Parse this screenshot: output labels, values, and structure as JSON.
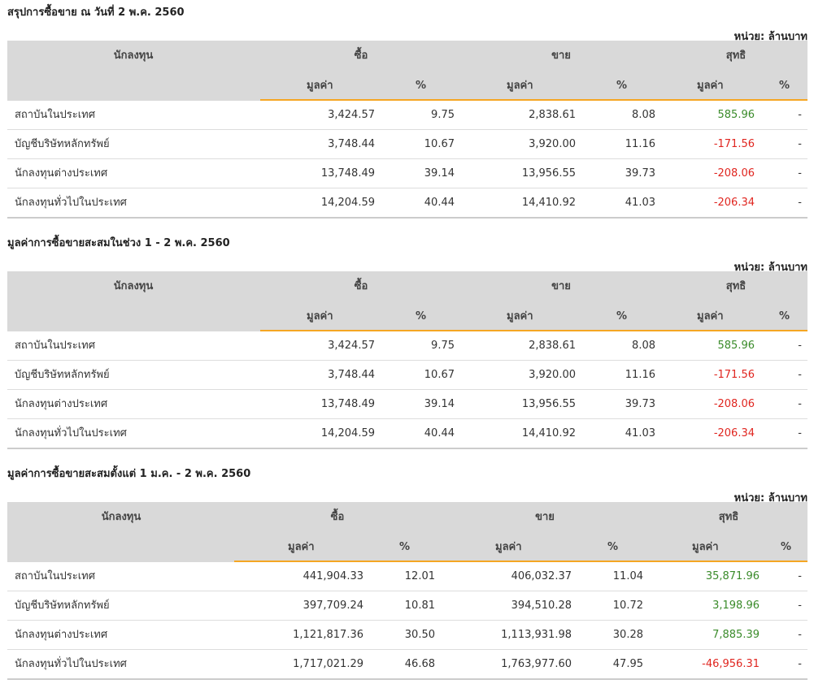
{
  "unit_label": "หน่วย: ล้านบาท",
  "headers": {
    "investor": "นักลงทุน",
    "buy": "ซื้อ",
    "sell": "ขาย",
    "net": "สุทธิ",
    "value": "มูลค่า",
    "pct": "%"
  },
  "colors": {
    "accent": "#f5a623",
    "positive": "#3a8b2a",
    "negative": "#e0251f",
    "header_bg": "#d9d9d9"
  },
  "sections": [
    {
      "title": "สรุปการซื้อขาย ณ วันที่ 2 พ.ค. 2560",
      "rows": [
        {
          "name": "สถาบันในประเทศ",
          "buy_value": "3,424.57",
          "buy_pct": "9.75",
          "sell_value": "2,838.61",
          "sell_pct": "8.08",
          "net_value": "585.96",
          "net_pct": "-",
          "sign": "pos"
        },
        {
          "name": "บัญชีบริษัทหลักทรัพย์",
          "buy_value": "3,748.44",
          "buy_pct": "10.67",
          "sell_value": "3,920.00",
          "sell_pct": "11.16",
          "net_value": "-171.56",
          "net_pct": "-",
          "sign": "neg"
        },
        {
          "name": "นักลงทุนต่างประเทศ",
          "buy_value": "13,748.49",
          "buy_pct": "39.14",
          "sell_value": "13,956.55",
          "sell_pct": "39.73",
          "net_value": "-208.06",
          "net_pct": "-",
          "sign": "neg"
        },
        {
          "name": "นักลงทุนทั่วไปในประเทศ",
          "buy_value": "14,204.59",
          "buy_pct": "40.44",
          "sell_value": "14,410.92",
          "sell_pct": "41.03",
          "net_value": "-206.34",
          "net_pct": "-",
          "sign": "neg"
        }
      ]
    },
    {
      "title": "มูลค่าการซื้อขายสะสมในช่วง 1 - 2 พ.ค. 2560",
      "rows": [
        {
          "name": "สถาบันในประเทศ",
          "buy_value": "3,424.57",
          "buy_pct": "9.75",
          "sell_value": "2,838.61",
          "sell_pct": "8.08",
          "net_value": "585.96",
          "net_pct": "-",
          "sign": "pos"
        },
        {
          "name": "บัญชีบริษัทหลักทรัพย์",
          "buy_value": "3,748.44",
          "buy_pct": "10.67",
          "sell_value": "3,920.00",
          "sell_pct": "11.16",
          "net_value": "-171.56",
          "net_pct": "-",
          "sign": "neg"
        },
        {
          "name": "นักลงทุนต่างประเทศ",
          "buy_value": "13,748.49",
          "buy_pct": "39.14",
          "sell_value": "13,956.55",
          "sell_pct": "39.73",
          "net_value": "-208.06",
          "net_pct": "-",
          "sign": "neg"
        },
        {
          "name": "นักลงทุนทั่วไปในประเทศ",
          "buy_value": "14,204.59",
          "buy_pct": "40.44",
          "sell_value": "14,410.92",
          "sell_pct": "41.03",
          "net_value": "-206.34",
          "net_pct": "-",
          "sign": "neg"
        }
      ]
    },
    {
      "title": "มูลค่าการซื้อขายสะสมตั้งแต่ 1 ม.ค. - 2 พ.ค. 2560",
      "rows": [
        {
          "name": "สถาบันในประเทศ",
          "buy_value": "441,904.33",
          "buy_pct": "12.01",
          "sell_value": "406,032.37",
          "sell_pct": "11.04",
          "net_value": "35,871.96",
          "net_pct": "-",
          "sign": "pos"
        },
        {
          "name": "บัญชีบริษัทหลักทรัพย์",
          "buy_value": "397,709.24",
          "buy_pct": "10.81",
          "sell_value": "394,510.28",
          "sell_pct": "10.72",
          "net_value": "3,198.96",
          "net_pct": "-",
          "sign": "pos"
        },
        {
          "name": "นักลงทุนต่างประเทศ",
          "buy_value": "1,121,817.36",
          "buy_pct": "30.50",
          "sell_value": "1,113,931.98",
          "sell_pct": "30.28",
          "net_value": "7,885.39",
          "net_pct": "-",
          "sign": "pos"
        },
        {
          "name": "นักลงทุนทั่วไปในประเทศ",
          "buy_value": "1,717,021.29",
          "buy_pct": "46.68",
          "sell_value": "1,763,977.60",
          "sell_pct": "47.95",
          "net_value": "-46,956.31",
          "net_pct": "-",
          "sign": "neg"
        }
      ]
    }
  ]
}
